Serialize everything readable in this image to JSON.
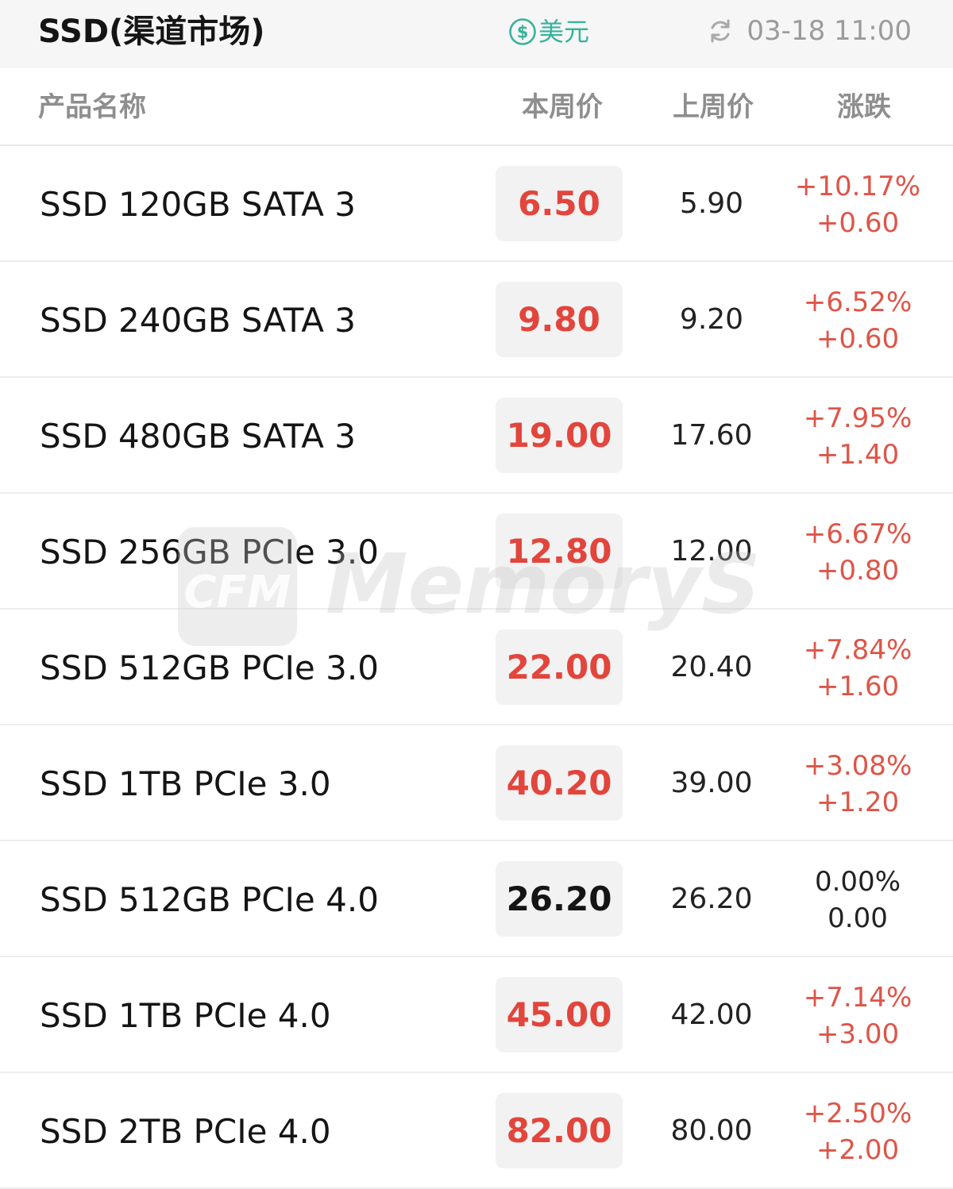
{
  "header": {
    "title": "SSD(渠道市场)",
    "currency_icon": "dollar-circle-icon",
    "currency_label": "美元",
    "refresh_icon": "refresh-icon",
    "timestamp": "03-18 11:00"
  },
  "columns": {
    "name": "产品名称",
    "this_week": "本周价",
    "last_week": "上周价",
    "change": "涨跌"
  },
  "rows": [
    {
      "name": "SSD 120GB SATA 3",
      "this_week": "6.50",
      "last_week": "5.90",
      "pct": "+10.17%",
      "diff": "+0.60",
      "trend": "up"
    },
    {
      "name": "SSD 240GB SATA 3",
      "this_week": "9.80",
      "last_week": "9.20",
      "pct": "+6.52%",
      "diff": "+0.60",
      "trend": "up"
    },
    {
      "name": "SSD 480GB SATA 3",
      "this_week": "19.00",
      "last_week": "17.60",
      "pct": "+7.95%",
      "diff": "+1.40",
      "trend": "up"
    },
    {
      "name": "SSD 256GB PCIe 3.0",
      "this_week": "12.80",
      "last_week": "12.00",
      "pct": "+6.67%",
      "diff": "+0.80",
      "trend": "up"
    },
    {
      "name": "SSD 512GB PCIe 3.0",
      "this_week": "22.00",
      "last_week": "20.40",
      "pct": "+7.84%",
      "diff": "+1.60",
      "trend": "up"
    },
    {
      "name": "SSD 1TB PCIe 3.0",
      "this_week": "40.20",
      "last_week": "39.00",
      "pct": "+3.08%",
      "diff": "+1.20",
      "trend": "up"
    },
    {
      "name": "SSD 512GB PCIe 4.0",
      "this_week": "26.20",
      "last_week": "26.20",
      "pct": "0.00%",
      "diff": "0.00",
      "trend": "flat"
    },
    {
      "name": "SSD 1TB PCIe 4.0",
      "this_week": "45.00",
      "last_week": "42.00",
      "pct": "+7.14%",
      "diff": "+3.00",
      "trend": "up"
    },
    {
      "name": "SSD 2TB PCIe 4.0",
      "this_week": "82.00",
      "last_week": "80.00",
      "pct": "+2.50%",
      "diff": "+2.00",
      "trend": "up"
    }
  ],
  "watermark": {
    "logo_text": "CFM",
    "brand_text": "MemoryS"
  },
  "colors": {
    "accent_green": "#35b39b",
    "up_red": "#e2453c",
    "muted_gray": "#9b9b9b"
  }
}
